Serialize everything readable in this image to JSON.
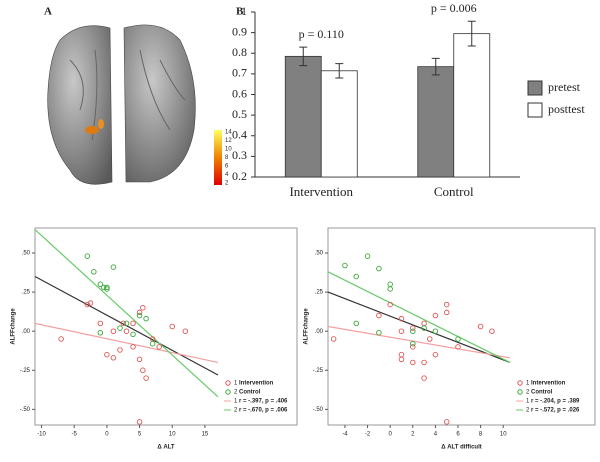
{
  "chart_data": [
    {
      "type": "brain",
      "panel": "A",
      "colorbar_ticks": [
        14,
        12,
        10,
        8,
        6,
        4,
        2
      ]
    },
    {
      "type": "bar",
      "panel": "B",
      "categories": [
        "Intervention",
        "Control"
      ],
      "series": [
        {
          "name": "pretest",
          "color": "#808080",
          "values": [
            0.785,
            0.735
          ],
          "errors": [
            0.045,
            0.04
          ]
        },
        {
          "name": "posttest",
          "color": "#ffffff",
          "values": [
            0.715,
            0.895
          ],
          "errors": [
            0.035,
            0.06
          ]
        }
      ],
      "annotations": [
        "p = 0.110",
        "p = 0.006"
      ],
      "ylim": [
        0.2,
        1
      ],
      "yticks": [
        0.2,
        0.3,
        0.4,
        0.5,
        0.6,
        0.7,
        0.8,
        0.9,
        1
      ]
    },
    {
      "type": "scatter",
      "x_label": "Δ ALT",
      "y_label": "ALFFchange",
      "xlim": [
        -11,
        17
      ],
      "xticks": [
        -10,
        -5,
        0,
        5,
        10,
        15
      ],
      "ylim": [
        -0.6,
        0.66
      ],
      "yticks": [
        {
          "value": 0.5,
          "label": ".50"
        },
        {
          "value": 0.25,
          "label": ".25"
        },
        {
          "value": 0,
          "label": ".00"
        },
        {
          "value": -0.25,
          "label": "-.25"
        },
        {
          "value": -0.5,
          "label": "-.50"
        }
      ],
      "series": [
        {
          "index": "1",
          "name": "Intervention",
          "color": "#e05555",
          "x": [
            -7,
            -3,
            -2.5,
            -1,
            0,
            1,
            1,
            2,
            2.5,
            3,
            4,
            4,
            5,
            5,
            5.5,
            5.5,
            6,
            5,
            7,
            8,
            10,
            12
          ],
          "values": [
            -0.05,
            0.17,
            0.18,
            0.05,
            -0.15,
            -0.17,
            0.0,
            -0.12,
            0.05,
            0.0,
            0.05,
            -0.1,
            0.12,
            -0.18,
            0.15,
            -0.25,
            -0.3,
            -0.58,
            -0.05,
            -0.1,
            0.03,
            0.0
          ]
        },
        {
          "index": "2",
          "name": "Control",
          "color": "#3aa83a",
          "x": [
            -3,
            -2,
            -1,
            -0.5,
            0,
            1,
            -1,
            2,
            3,
            4,
            5,
            6,
            7,
            0
          ],
          "values": [
            0.48,
            0.38,
            0.3,
            0.28,
            0.27,
            0.41,
            -0.01,
            0.02,
            0.05,
            -0.02,
            0.1,
            0.08,
            -0.08,
            0.28
          ]
        }
      ],
      "fit_lines": [
        {
          "color": "#333333",
          "x": [
            -11,
            17
          ],
          "values": [
            0.35,
            -0.28
          ]
        },
        {
          "index": "1",
          "label": "r = -.397, p = .406",
          "color": "#f4a0a0",
          "x": [
            -11,
            17
          ],
          "values": [
            0.05,
            -0.2
          ]
        },
        {
          "index": "2",
          "label": "r = -.670, p = .006",
          "color": "#66cc66",
          "x": [
            -11,
            17
          ],
          "values": [
            0.65,
            -0.42
          ]
        }
      ]
    },
    {
      "type": "scatter",
      "x_label": "Δ ALT difficult",
      "y_label": "ALFFchange",
      "xlim": [
        -5.5,
        10.6
      ],
      "xticks": [
        -4,
        -2,
        0,
        2,
        4,
        6,
        8,
        10
      ],
      "ylim": [
        -0.6,
        0.66
      ],
      "yticks": [
        {
          "value": 0.5,
          "label": ".50"
        },
        {
          "value": 0.25,
          "label": ".25"
        },
        {
          "value": 0,
          "label": ".00"
        },
        {
          "value": -0.25,
          "label": "-.25"
        },
        {
          "value": -0.5,
          "label": "-.50"
        }
      ],
      "series": [
        {
          "index": "1",
          "name": "Intervention",
          "color": "#e05555",
          "x": [
            -5,
            -1,
            0,
            1,
            1,
            1,
            1,
            2,
            2,
            2,
            3,
            3,
            3.5,
            4,
            4,
            5,
            5,
            5,
            6,
            8,
            9,
            3
          ],
          "values": [
            -0.05,
            0.1,
            0.17,
            0.08,
            -0.15,
            -0.18,
            0.0,
            0.02,
            -0.1,
            -0.2,
            0.05,
            -0.3,
            -0.05,
            -0.15,
            0.1,
            0.12,
            0.17,
            -0.58,
            -0.1,
            0.03,
            0.0,
            -0.2
          ]
        },
        {
          "index": "2",
          "name": "Control",
          "color": "#3aa83a",
          "x": [
            -4,
            -3,
            -2,
            -1,
            0,
            0,
            -3,
            -1,
            2,
            2,
            3,
            4,
            6
          ],
          "values": [
            0.42,
            0.35,
            0.48,
            0.4,
            0.3,
            0.27,
            0.05,
            -0.01,
            0.0,
            -0.08,
            0.02,
            0.0,
            -0.05
          ]
        }
      ],
      "fit_lines": [
        {
          "color": "#333333",
          "x": [
            -5.5,
            10.6
          ],
          "values": [
            0.25,
            -0.2
          ]
        },
        {
          "index": "1",
          "label": "r = -.204, p = .389",
          "color": "#f4a0a0",
          "x": [
            -5.5,
            10.6
          ],
          "values": [
            0.03,
            -0.17
          ]
        },
        {
          "index": "2",
          "label": "r = -.572, p = .026",
          "color": "#66cc66",
          "x": [
            -5.5,
            10.6
          ],
          "values": [
            0.38,
            -0.2
          ]
        }
      ]
    }
  ]
}
